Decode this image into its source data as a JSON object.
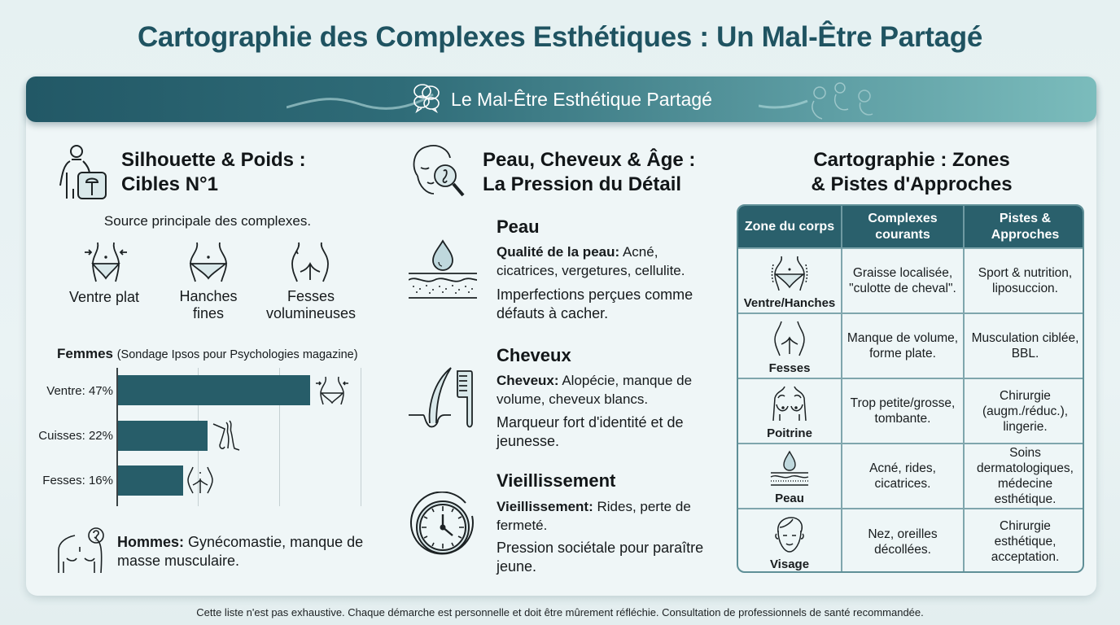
{
  "header": {
    "title": "Cartographie des Complexes Esthétiques : Un Mal-Être Partagé",
    "banner": "Le Mal-Être Esthétique Partagé",
    "banner_icon": "speech-bubbles-icon"
  },
  "colors": {
    "primary": "#1f5361",
    "bar": "#275d69",
    "table_header": "#2a606c",
    "banner_start": "#225866",
    "banner_end": "#7bbcbc",
    "background": "#e6f1f2"
  },
  "column1": {
    "title_line1": "Silhouette & Poids :",
    "title_line2": "Cibles N°1",
    "icon": "person-scale-icon",
    "subtitle": "Source principale des complexes.",
    "ideals": [
      {
        "label": "Ventre plat",
        "icon": "flat-belly-icon"
      },
      {
        "label": "Hanches fines",
        "icon": "slim-hips-icon"
      },
      {
        "label": "Fesses volumineuses",
        "icon": "buttocks-icon"
      }
    ],
    "chart_title_bold": "Femmes",
    "chart_title_rest": "(Sondage Ipsos pour Psychologies magazine)",
    "men_bold": "Hommes:",
    "men_text": "Gynécomastie, manque de masse musculaire.",
    "men_icon": "male-torso-question-icon"
  },
  "chart_data": {
    "type": "bar",
    "orientation": "horizontal",
    "title": "Femmes (Sondage Ipsos pour Psychologies magazine)",
    "categories": [
      "Ventre",
      "Cuisses",
      "Fesses"
    ],
    "values": [
      47,
      22,
      16
    ],
    "labels": [
      "Ventre: 47%",
      "Cuisses: 22%",
      "Fesses: 16%"
    ],
    "unit": "%",
    "xlabel": "",
    "ylabel": "",
    "xlim": [
      0,
      60
    ],
    "grid": true,
    "gridlines_at": [
      20,
      40,
      60
    ],
    "bar_color": "#275d69"
  },
  "column2": {
    "title_line1": "Peau, Cheveux & Âge :",
    "title_line2": "La Pression du Détail",
    "icon": "face-magnifier-icon",
    "sections": [
      {
        "heading": "Peau",
        "icon": "skin-drop-icon",
        "bold": "Qualité de la peau:",
        "text": "Acné, cicatrices, vergetures, cellulite.",
        "note": "Imperfections perçues comme défauts à cacher."
      },
      {
        "heading": "Cheveux",
        "icon": "hair-comb-icon",
        "bold": "Cheveux:",
        "text": "Alopécie, manque de volume, cheveux blancs.",
        "note": "Marqueur fort d'identité et de jeunesse."
      },
      {
        "heading": "Vieillissement",
        "icon": "clock-icon",
        "bold": "Vieillissement:",
        "text": "Rides, perte de fermeté.",
        "note": "Pression sociétale pour paraître jeune."
      }
    ]
  },
  "column3": {
    "title_line1": "Cartographie : Zones",
    "title_line2": "& Pistes d'Approches",
    "table": {
      "headers": [
        "Zone du corps",
        "Complexes courants",
        "Pistes & Approches"
      ],
      "rows": [
        {
          "zone": "Ventre/Hanches",
          "icon": "belly-hips-icon",
          "complexes": "Graisse localisée, \"culotte de cheval\".",
          "approches": "Sport & nutrition, liposuccion."
        },
        {
          "zone": "Fesses",
          "icon": "buttocks-icon",
          "complexes": "Manque de volume, forme plate.",
          "approches": "Musculation ciblée, BBL."
        },
        {
          "zone": "Poitrine",
          "icon": "chest-icon",
          "complexes": "Trop petite/grosse, tombante.",
          "approches": "Chirurgie (augm./réduc.), lingerie."
        },
        {
          "zone": "Peau",
          "icon": "skin-drop-icon",
          "complexes": "Acné, rides, cicatrices.",
          "approches": "Soins dermatologiques, médecine esthétique."
        },
        {
          "zone": "Visage",
          "icon": "face-icon",
          "complexes": "Nez, oreilles décollées.",
          "approches": "Chirurgie esthétique, acceptation."
        }
      ]
    }
  },
  "footer": {
    "disclaimer": "Cette liste n'est pas exhaustive. Chaque démarche est personnelle et doit être mûrement réfléchie. Consultation de professionnels de santé recommandée."
  }
}
